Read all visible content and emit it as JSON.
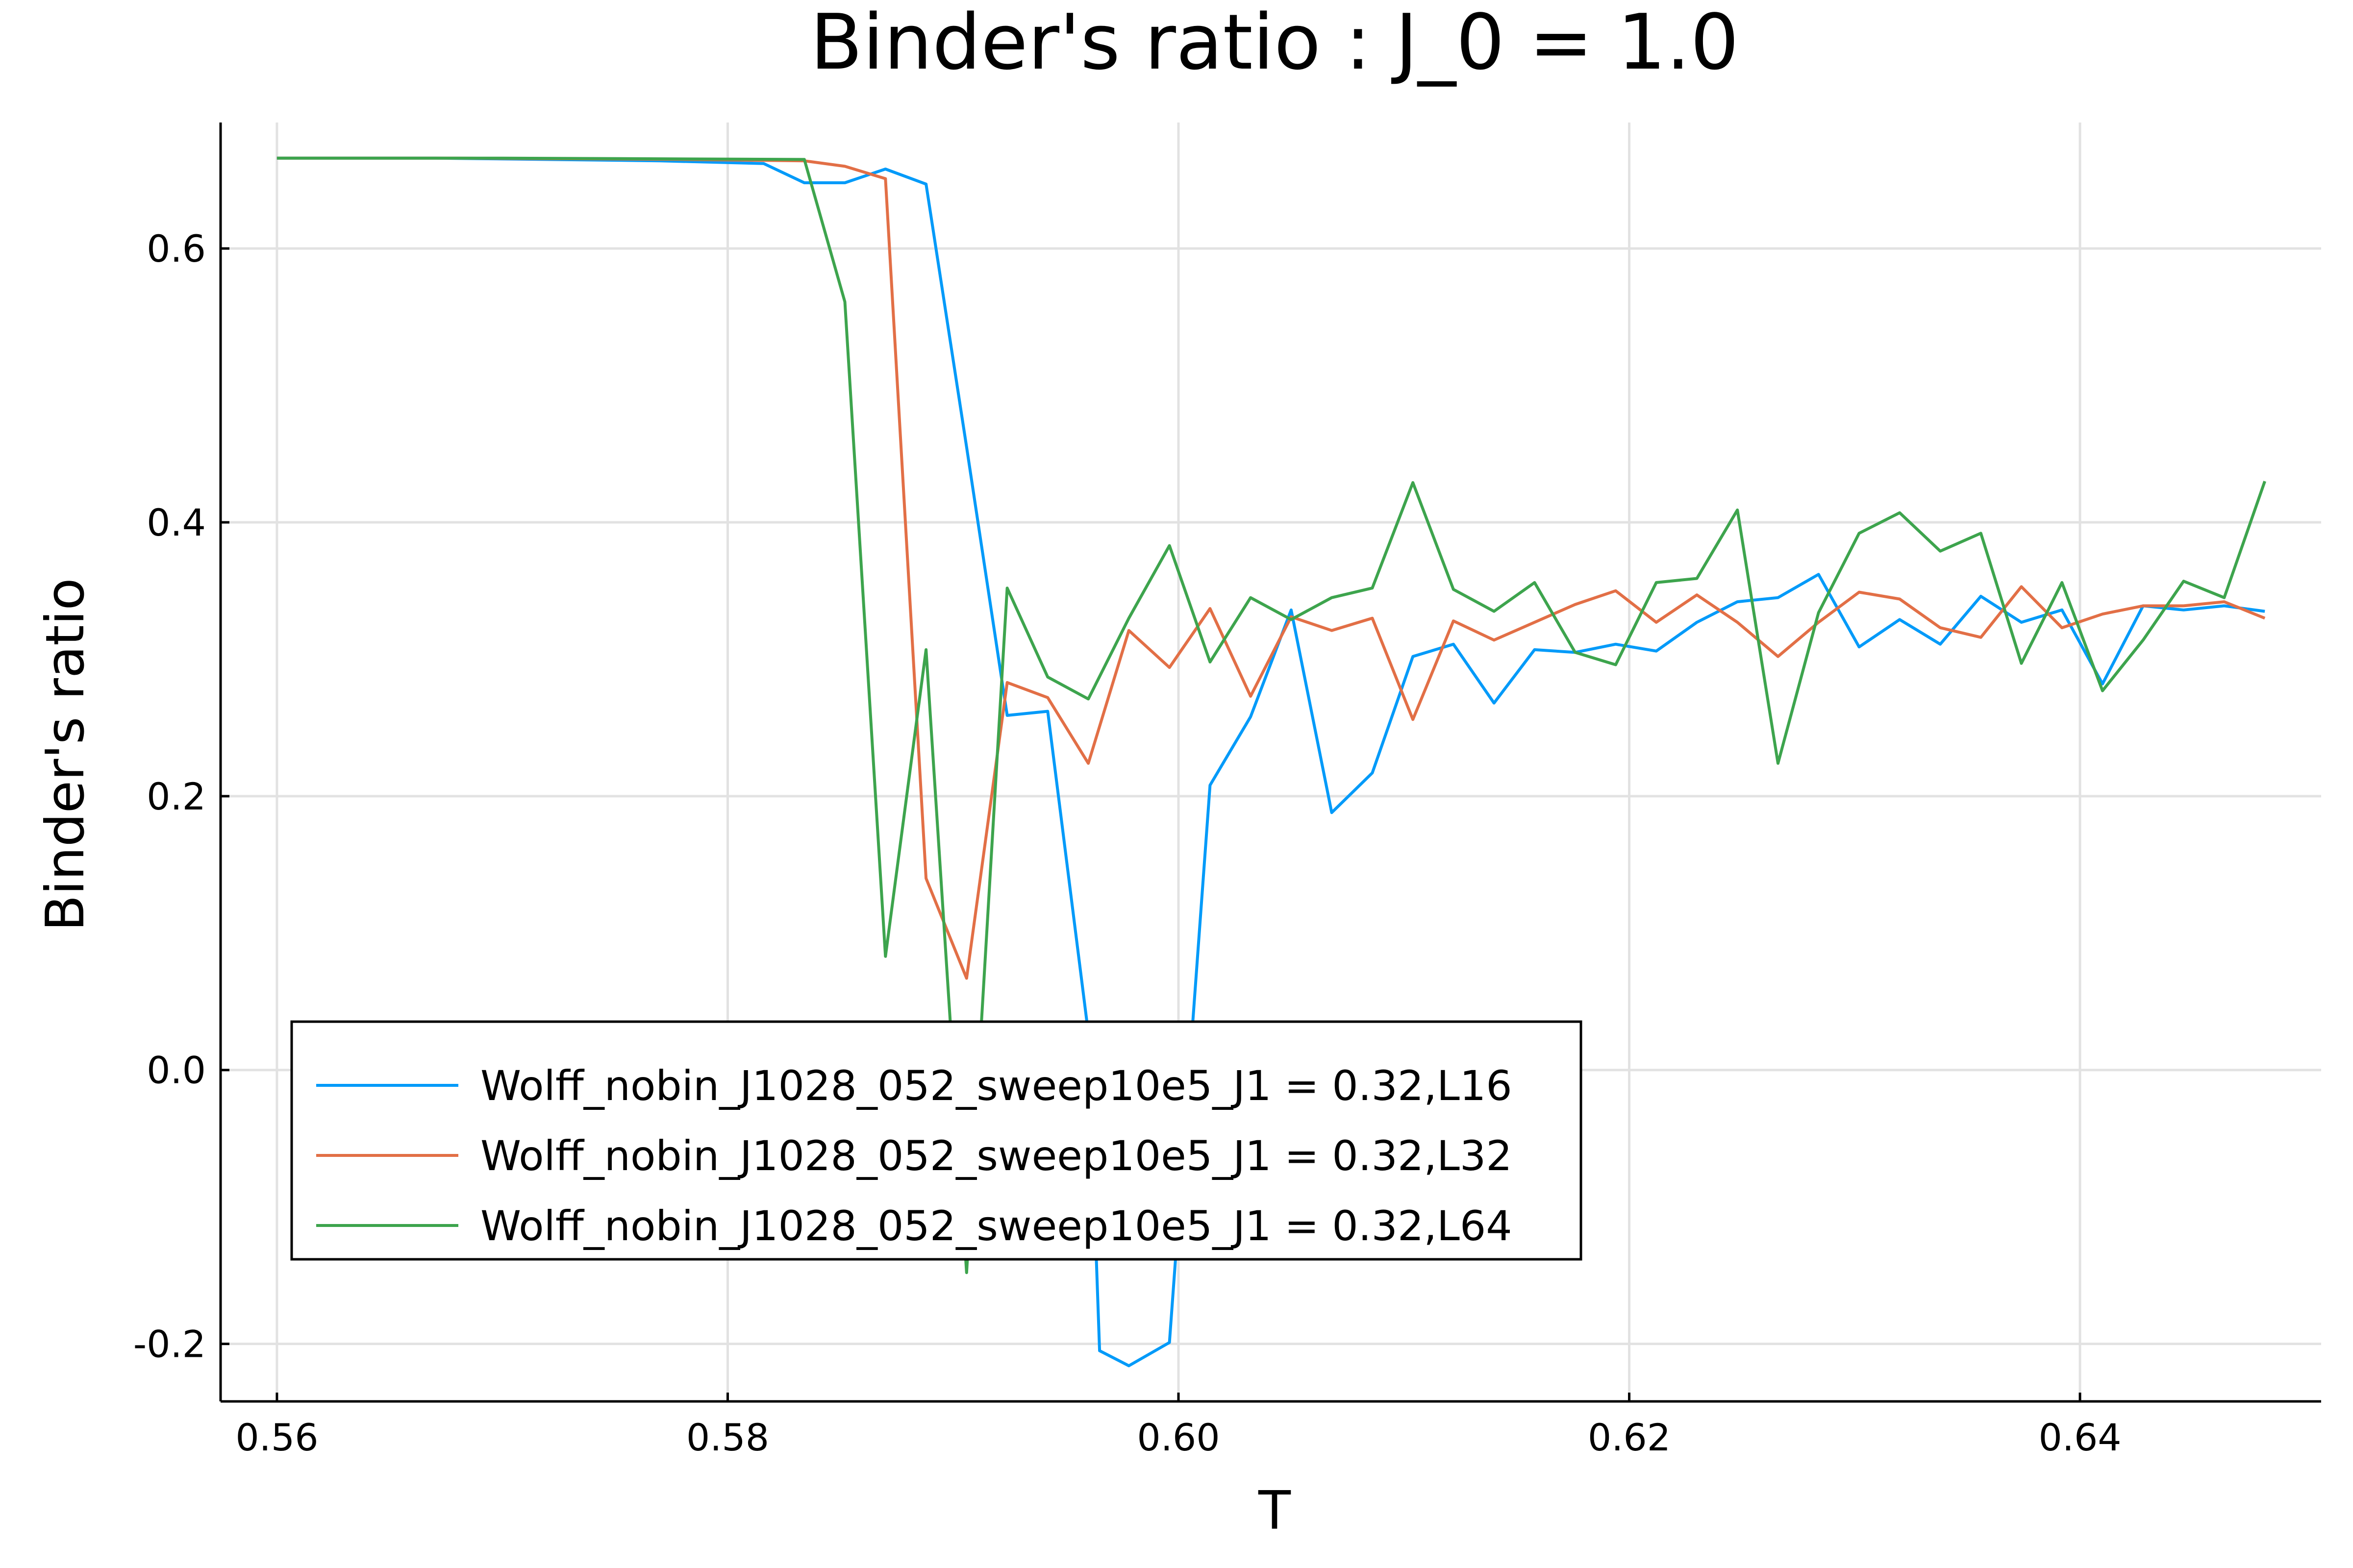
{
  "chart_data": {
    "type": "line",
    "title": "Binder's ratio : J_0 = 1.0",
    "xlabel": "T",
    "ylabel": "Binder's ratio",
    "xlim": [
      0.5575,
      0.6507
    ],
    "ylim": [
      -0.242,
      0.692
    ],
    "x_ticks": [
      0.56,
      0.58,
      0.6,
      0.62,
      0.64
    ],
    "x_tick_labels": [
      "0.56",
      "0.58",
      "0.60",
      "0.62",
      "0.64"
    ],
    "y_ticks": [
      -0.2,
      0.0,
      0.2,
      0.4,
      0.6
    ],
    "y_tick_labels": [
      "-0.2",
      "0.0",
      "0.2",
      "0.4",
      "0.6"
    ],
    "grid": true,
    "legend_position": "bottom-left",
    "series": [
      {
        "name": "Wolff_nobin_J1028_052_sweep10e5_J1 = 0.32,L16",
        "color": "#009af9",
        "points": [
          [
            0.56,
            0.666
          ],
          [
            0.567,
            0.666
          ],
          [
            0.577,
            0.664
          ],
          [
            0.5816,
            0.662
          ],
          [
            0.5834,
            0.648
          ],
          [
            0.5852,
            0.648
          ],
          [
            0.587,
            0.658
          ],
          [
            0.5888,
            0.647
          ],
          [
            0.5906,
            0.455
          ],
          [
            0.5924,
            0.259
          ],
          [
            0.5942,
            0.262
          ],
          [
            0.596,
            0.027
          ],
          [
            0.5965,
            -0.205
          ],
          [
            0.5978,
            -0.216
          ],
          [
            0.5996,
            -0.199
          ],
          [
            0.6014,
            0.208
          ],
          [
            0.6032,
            0.258
          ],
          [
            0.605,
            0.336
          ],
          [
            0.6068,
            0.188
          ],
          [
            0.6086,
            0.217
          ],
          [
            0.6104,
            0.302
          ],
          [
            0.6122,
            0.311
          ],
          [
            0.614,
            0.268
          ],
          [
            0.6158,
            0.307
          ],
          [
            0.6176,
            0.305
          ],
          [
            0.6194,
            0.311
          ],
          [
            0.6212,
            0.306
          ],
          [
            0.623,
            0.327
          ],
          [
            0.6248,
            0.342
          ],
          [
            0.6266,
            0.345
          ],
          [
            0.6284,
            0.362
          ],
          [
            0.6302,
            0.309
          ],
          [
            0.632,
            0.329
          ],
          [
            0.6338,
            0.311
          ],
          [
            0.6356,
            0.346
          ],
          [
            0.6374,
            0.327
          ],
          [
            0.6392,
            0.336
          ],
          [
            0.641,
            0.282
          ],
          [
            0.6428,
            0.339
          ],
          [
            0.6446,
            0.336
          ],
          [
            0.6464,
            0.339
          ],
          [
            0.6482,
            0.335
          ]
        ]
      },
      {
        "name": "Wolff_nobin_J1028_052_sweep10e5_J1 = 0.32,L32",
        "color": "#e26f46",
        "points": [
          [
            0.56,
            0.666
          ],
          [
            0.568,
            0.666
          ],
          [
            0.578,
            0.665
          ],
          [
            0.5834,
            0.664
          ],
          [
            0.5852,
            0.66
          ],
          [
            0.587,
            0.651
          ],
          [
            0.5888,
            0.14
          ],
          [
            0.5906,
            0.067
          ],
          [
            0.5924,
            0.283
          ],
          [
            0.5942,
            0.272
          ],
          [
            0.596,
            0.224
          ],
          [
            0.5978,
            0.321
          ],
          [
            0.5996,
            0.294
          ],
          [
            0.6014,
            0.337
          ],
          [
            0.6032,
            0.273
          ],
          [
            0.605,
            0.331
          ],
          [
            0.6068,
            0.321
          ],
          [
            0.6086,
            0.33
          ],
          [
            0.6104,
            0.256
          ],
          [
            0.6122,
            0.328
          ],
          [
            0.614,
            0.314
          ],
          [
            0.6158,
            0.327
          ],
          [
            0.6176,
            0.34
          ],
          [
            0.6194,
            0.35
          ],
          [
            0.6212,
            0.327
          ],
          [
            0.623,
            0.347
          ],
          [
            0.6248,
            0.327
          ],
          [
            0.6266,
            0.302
          ],
          [
            0.6284,
            0.327
          ],
          [
            0.6302,
            0.349
          ],
          [
            0.632,
            0.344
          ],
          [
            0.6338,
            0.323
          ],
          [
            0.6356,
            0.316
          ],
          [
            0.6374,
            0.353
          ],
          [
            0.6392,
            0.323
          ],
          [
            0.641,
            0.333
          ],
          [
            0.6428,
            0.339
          ],
          [
            0.6446,
            0.339
          ],
          [
            0.6464,
            0.342
          ],
          [
            0.6482,
            0.33
          ]
        ]
      },
      {
        "name": "Wolff_nobin_J1028_052_sweep10e5_J1 = 0.32,L64",
        "color": "#3da44d",
        "points": [
          [
            0.56,
            0.666
          ],
          [
            0.57,
            0.666
          ],
          [
            0.5834,
            0.665
          ],
          [
            0.5852,
            0.561
          ],
          [
            0.587,
            0.083
          ],
          [
            0.5888,
            0.307
          ],
          [
            0.5906,
            -0.148
          ],
          [
            0.5924,
            0.352
          ],
          [
            0.5942,
            0.287
          ],
          [
            0.596,
            0.271
          ],
          [
            0.5978,
            0.33
          ],
          [
            0.5996,
            0.383
          ],
          [
            0.6014,
            0.298
          ],
          [
            0.6032,
            0.345
          ],
          [
            0.605,
            0.329
          ],
          [
            0.6068,
            0.345
          ],
          [
            0.6086,
            0.352
          ],
          [
            0.6104,
            0.429
          ],
          [
            0.6122,
            0.351
          ],
          [
            0.614,
            0.335
          ],
          [
            0.6158,
            0.356
          ],
          [
            0.6176,
            0.305
          ],
          [
            0.6194,
            0.296
          ],
          [
            0.6212,
            0.356
          ],
          [
            0.623,
            0.359
          ],
          [
            0.6248,
            0.409
          ],
          [
            0.6266,
            0.224
          ],
          [
            0.6284,
            0.334
          ],
          [
            0.6302,
            0.392
          ],
          [
            0.632,
            0.407
          ],
          [
            0.6338,
            0.379
          ],
          [
            0.6356,
            0.392
          ],
          [
            0.6374,
            0.297
          ],
          [
            0.6392,
            0.356
          ],
          [
            0.641,
            0.277
          ],
          [
            0.6428,
            0.314
          ],
          [
            0.6446,
            0.357
          ],
          [
            0.6464,
            0.345
          ],
          [
            0.6482,
            0.43
          ]
        ]
      }
    ]
  }
}
